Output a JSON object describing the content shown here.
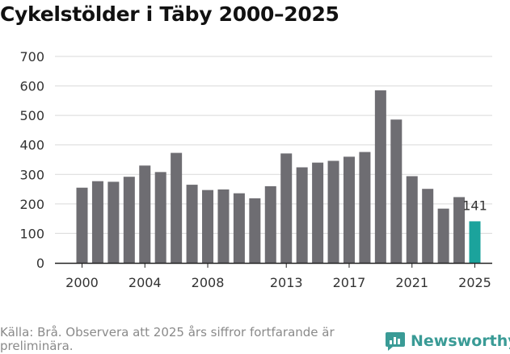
{
  "chart_data": {
    "type": "bar",
    "title": "Cykelstölder i Täby 2000–2025",
    "xlabel": "",
    "ylabel": "",
    "ylim": [
      0,
      700
    ],
    "yticks": [
      0,
      100,
      200,
      300,
      400,
      500,
      600,
      700
    ],
    "categories": [
      "2000",
      "2001",
      "2002",
      "2003",
      "2004",
      "2005",
      "2006",
      "2007",
      "2008",
      "2009",
      "2010",
      "2011",
      "2012",
      "2013",
      "2014",
      "2015",
      "2016",
      "2017",
      "2018",
      "2019",
      "2020",
      "2021",
      "2022",
      "2023",
      "2024",
      "2025"
    ],
    "values": [
      255,
      277,
      275,
      292,
      330,
      308,
      373,
      265,
      247,
      249,
      236,
      219,
      260,
      371,
      324,
      340,
      346,
      360,
      376,
      585,
      486,
      294,
      251,
      184,
      223,
      141
    ],
    "xtick_labels": [
      "2000",
      "2004",
      "2008",
      "2013",
      "2017",
      "2021",
      "2025"
    ],
    "highlight": {
      "category": "2025",
      "label": "141"
    },
    "colors": {
      "bar": "#6e6d72",
      "highlight": "#1ba39c",
      "grid": "#d9d9d9",
      "axis": "#222222"
    },
    "grid": true
  },
  "footer": {
    "source": "Källa: Brå. Observera att 2025 års siffror fortfarande är preliminära.",
    "brand": "Newsworthy",
    "brand_icon": "newsworthy-chart-bubble-icon"
  }
}
